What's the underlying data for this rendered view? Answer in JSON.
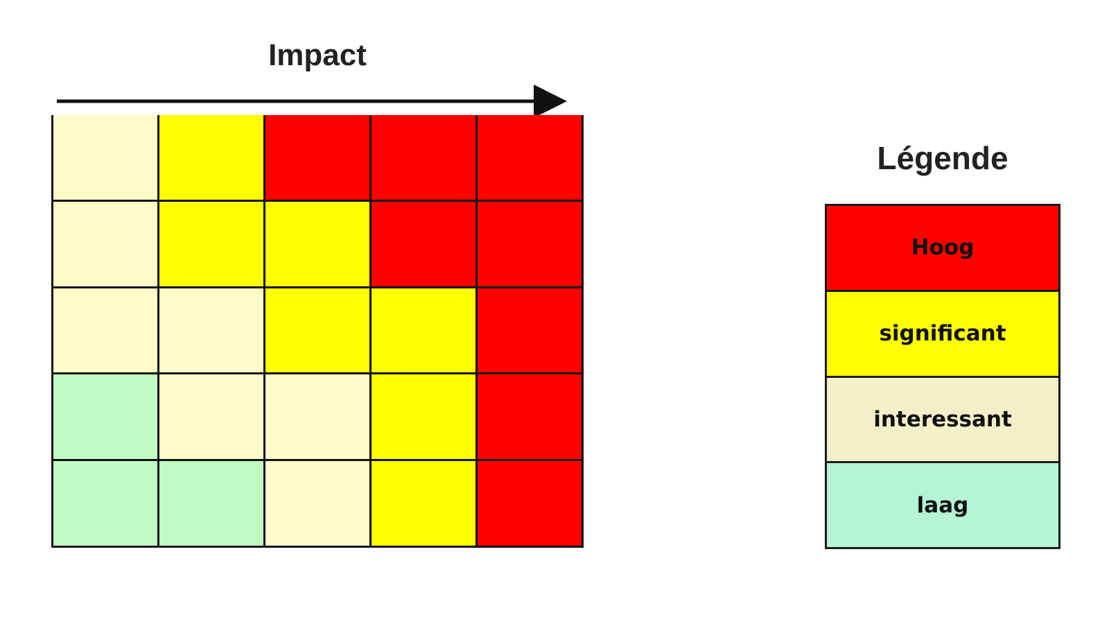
{
  "header": {
    "axis_label": "Impact"
  },
  "colors": {
    "hoog": "#ff0000",
    "significant": "#ffff00",
    "interessant": "#fdfcc8",
    "laag": "#c0fbc4",
    "legend_interessant": "#f3f0c9",
    "legend_laag": "#b5f5d5"
  },
  "matrix": {
    "rows": [
      [
        "interessant",
        "significant",
        "hoog",
        "hoog",
        "hoog"
      ],
      [
        "interessant",
        "significant",
        "significant",
        "hoog",
        "hoog"
      ],
      [
        "interessant",
        "interessant",
        "significant",
        "significant",
        "hoog"
      ],
      [
        "laag",
        "interessant",
        "interessant",
        "significant",
        "hoog"
      ],
      [
        "laag",
        "laag",
        "interessant",
        "significant",
        "hoog"
      ]
    ]
  },
  "legend": {
    "title": "Légende",
    "items": [
      {
        "key": "hoog",
        "label": "Hoog",
        "color": "#ff0000"
      },
      {
        "key": "significant",
        "label": "significant",
        "color": "#ffff00"
      },
      {
        "key": "interessant",
        "label": "interessant",
        "color": "#f3f0c9"
      },
      {
        "key": "laag",
        "label": "laag",
        "color": "#b5f5d5"
      }
    ]
  }
}
